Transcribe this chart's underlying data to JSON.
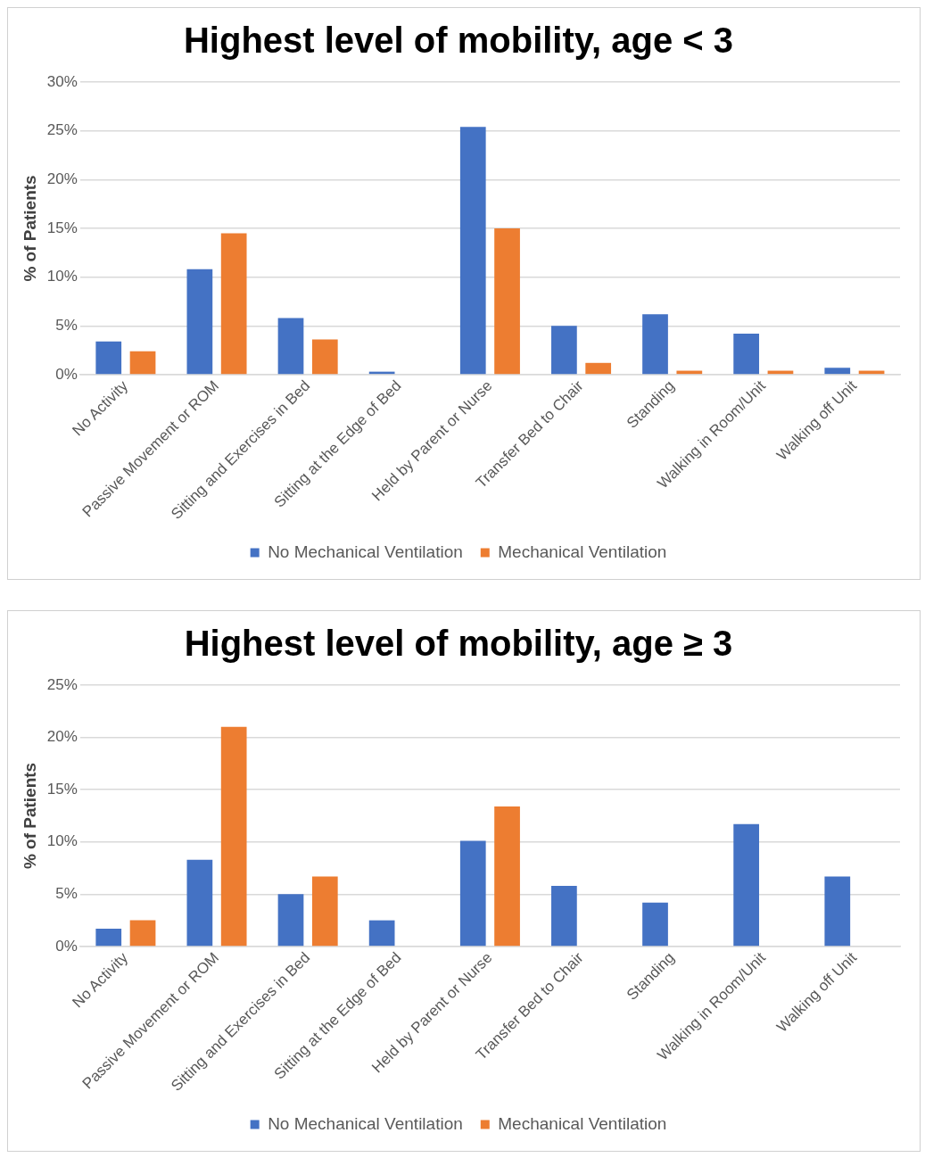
{
  "chart_data": [
    {
      "type": "bar",
      "title": "Highest level of mobility, age < 3",
      "ylabel": "% of Patients",
      "categories": [
        "No Activity",
        "Passive Movement or ROM",
        "Sitting and Exercises in Bed",
        "Sitting at the Edge of Bed",
        "Held by Parent or Nurse",
        "Transfer Bed to Chair",
        "Standing",
        "Walking in Room/Unit",
        "Walking off Unit"
      ],
      "series": [
        {
          "name": "No Mechanical Ventilation",
          "color": "#4472c4",
          "values": [
            3.4,
            10.8,
            5.8,
            0.3,
            25.4,
            5.0,
            6.2,
            4.2,
            0.7
          ]
        },
        {
          "name": "Mechanical Ventilation",
          "color": "#ed7d31",
          "values": [
            2.4,
            14.5,
            3.6,
            0,
            15.0,
            1.2,
            0.4,
            0.4,
            0.4
          ]
        }
      ],
      "ylim": [
        0,
        30
      ],
      "yticks": [
        {
          "value": 0,
          "label": "0%"
        },
        {
          "value": 5,
          "label": "5%"
        },
        {
          "value": 10,
          "label": "10%"
        },
        {
          "value": 15,
          "label": "15%"
        },
        {
          "value": 20,
          "label": "20%"
        },
        {
          "value": 25,
          "label": "25%"
        },
        {
          "value": 30,
          "label": "30%"
        }
      ],
      "grid": "y",
      "legend": "bottom"
    },
    {
      "type": "bar",
      "title": "Highest level of mobility, age ≥ 3",
      "ylabel": "% of Patients",
      "categories": [
        "No Activity",
        "Passive Movement or ROM",
        "Sitting and Exercises in Bed",
        "Sitting at the Edge of Bed",
        "Held by Parent or Nurse",
        "Transfer Bed to Chair",
        "Standing",
        "Walking in Room/Unit",
        "Walking off Unit"
      ],
      "series": [
        {
          "name": "No Mechanical Ventilation",
          "color": "#4472c4",
          "values": [
            1.7,
            8.3,
            5.0,
            2.5,
            10.1,
            5.8,
            4.2,
            11.7,
            6.7
          ]
        },
        {
          "name": "Mechanical Ventilation",
          "color": "#ed7d31",
          "values": [
            2.5,
            21.0,
            6.7,
            0,
            13.4,
            0,
            0,
            0,
            0
          ]
        }
      ],
      "ylim": [
        0,
        25
      ],
      "yticks": [
        {
          "value": 0,
          "label": "0%"
        },
        {
          "value": 5,
          "label": "5%"
        },
        {
          "value": 10,
          "label": "10%"
        },
        {
          "value": 15,
          "label": "15%"
        },
        {
          "value": 20,
          "label": "20%"
        },
        {
          "value": 25,
          "label": "25%"
        }
      ],
      "grid": "y",
      "legend": "bottom"
    }
  ]
}
